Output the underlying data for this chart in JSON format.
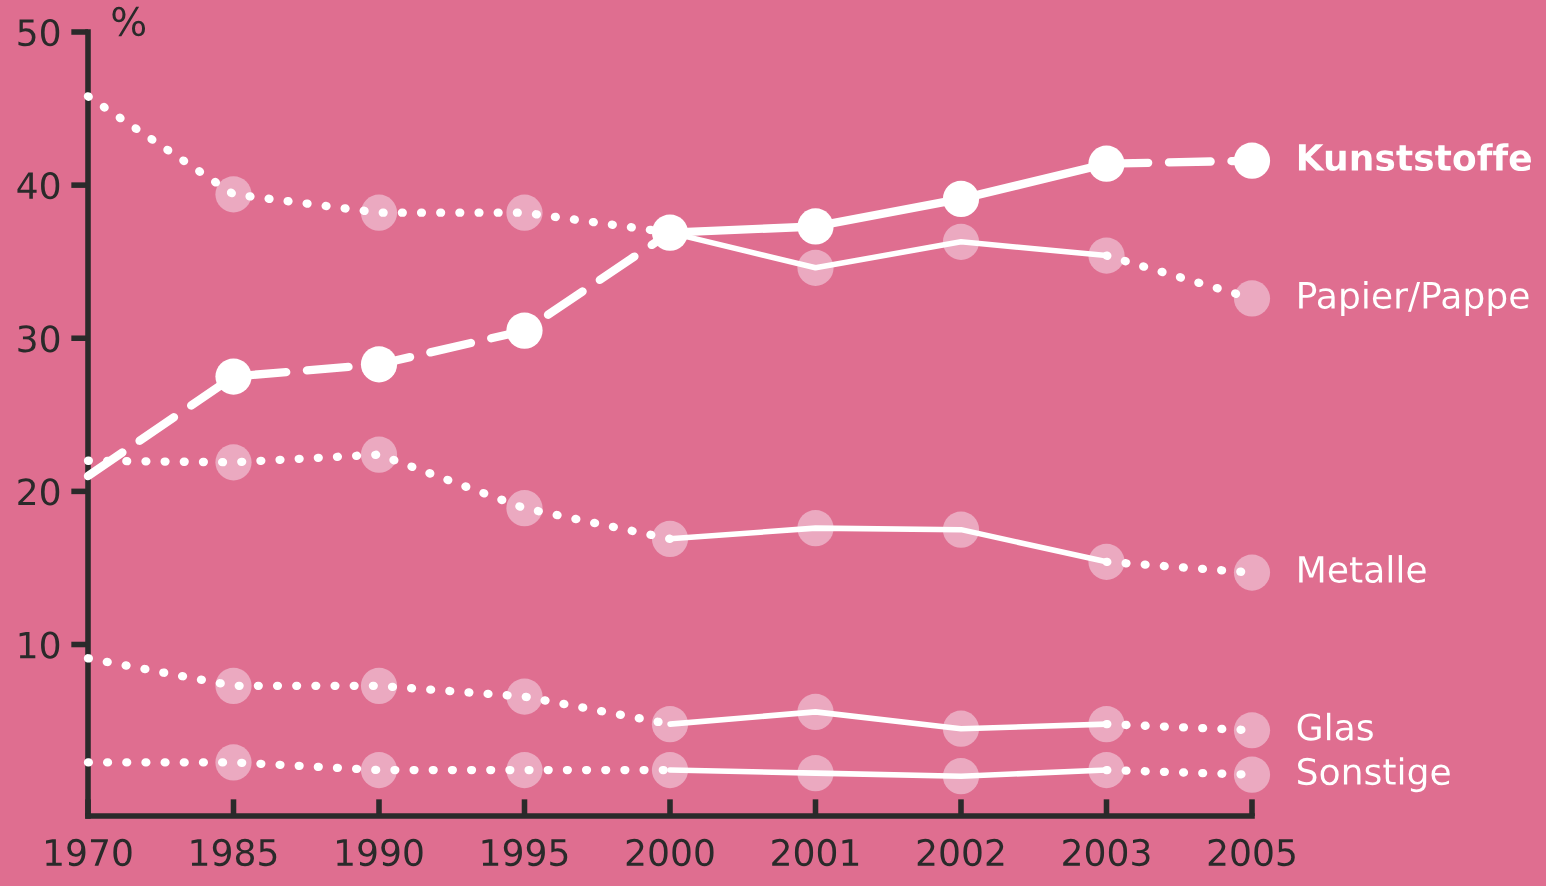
{
  "chart_data": {
    "type": "line",
    "ylabel": "%",
    "categories": [
      "1970",
      "1985",
      "1990",
      "1995",
      "2000",
      "2001",
      "2002",
      "2003",
      "2005"
    ],
    "ylim": [
      -1.2,
      50
    ],
    "yticks": [
      10,
      20,
      30,
      40,
      50
    ],
    "grid": false,
    "legend": false,
    "series": [
      {
        "color": "#ffffff",
        "line_style": "dashed",
        "values": [
          21.0,
          27.5,
          28.3,
          30.5,
          36.9,
          null,
          null,
          null,
          null
        ]
      },
      {
        "color": "#ffffff",
        "line_style": "solid",
        "values": [
          null,
          null,
          null,
          null,
          36.9,
          37.3,
          39.1,
          41.4,
          null
        ]
      },
      {
        "name": "Kunststoffe",
        "color": "#ffffff",
        "line_style": "dashed",
        "values": [
          null,
          null,
          null,
          null,
          null,
          null,
          null,
          41.4,
          41.6
        ]
      },
      {
        "type": "scatter",
        "marker": "circle",
        "color": "#ffffff",
        "values": [
          null,
          27.5,
          28.3,
          30.5,
          36.9,
          37.3,
          39.1,
          41.4,
          41.6
        ]
      },
      {
        "color": "#ffffff",
        "line_style": "dotted",
        "values": [
          45.8,
          39.4,
          38.2,
          38.2,
          36.9,
          null,
          null,
          null,
          null
        ]
      },
      {
        "color": "#ffffff",
        "line_style": "solid",
        "values": [
          null,
          null,
          null,
          null,
          36.9,
          34.6,
          36.3,
          35.4,
          null
        ]
      },
      {
        "name": "Papier/Pappe",
        "color": "#ffffff",
        "line_style": "dotted",
        "values": [
          null,
          null,
          null,
          null,
          null,
          null,
          null,
          35.4,
          32.6
        ]
      },
      {
        "type": "scatter",
        "marker": "circle",
        "color": "#eba9c0",
        "values": [
          null,
          39.4,
          38.2,
          38.2,
          null,
          34.6,
          36.3,
          35.4,
          32.6
        ]
      },
      {
        "color": "#ffffff",
        "line_style": "dotted",
        "values": [
          22.0,
          21.9,
          22.4,
          18.9,
          16.9,
          null,
          null,
          null,
          null
        ]
      },
      {
        "color": "#ffffff",
        "line_style": "solid",
        "values": [
          null,
          null,
          null,
          null,
          16.9,
          17.6,
          17.5,
          15.4,
          null
        ]
      },
      {
        "name": "Metalle",
        "color": "#ffffff",
        "line_style": "dotted",
        "values": [
          null,
          null,
          null,
          null,
          null,
          null,
          null,
          15.4,
          14.7
        ]
      },
      {
        "type": "scatter",
        "marker": "circle",
        "color": "#eba9c0",
        "values": [
          null,
          21.9,
          22.4,
          18.9,
          16.9,
          17.6,
          17.5,
          15.4,
          14.7
        ]
      },
      {
        "color": "#ffffff",
        "line_style": "dotted",
        "values": [
          9.1,
          7.3,
          7.3,
          6.6,
          4.8,
          null,
          null,
          null,
          null
        ]
      },
      {
        "color": "#ffffff",
        "line_style": "solid",
        "values": [
          null,
          null,
          null,
          null,
          4.8,
          5.6,
          4.5,
          4.8,
          null
        ]
      },
      {
        "name": "Glas",
        "color": "#ffffff",
        "line_style": "dotted",
        "values": [
          null,
          null,
          null,
          null,
          null,
          null,
          null,
          4.8,
          4.4
        ]
      },
      {
        "type": "scatter",
        "marker": "circle",
        "color": "#eba9c0",
        "values": [
          null,
          7.3,
          7.3,
          6.6,
          4.8,
          5.6,
          4.5,
          4.8,
          4.4
        ]
      },
      {
        "color": "#ffffff",
        "line_style": "dotted",
        "values": [
          2.3,
          2.3,
          1.8,
          1.8,
          1.8,
          null,
          null,
          null,
          null
        ]
      },
      {
        "color": "#ffffff",
        "line_style": "solid",
        "values": [
          null,
          null,
          null,
          null,
          1.8,
          1.6,
          1.4,
          1.8,
          null
        ]
      },
      {
        "name": "Sonstige",
        "color": "#ffffff",
        "line_style": "dotted",
        "values": [
          null,
          null,
          null,
          null,
          null,
          null,
          null,
          1.8,
          1.5
        ]
      },
      {
        "type": "scatter",
        "marker": "circle",
        "color": "#eba9c0",
        "values": [
          null,
          2.3,
          1.8,
          1.8,
          1.8,
          1.6,
          1.4,
          1.8,
          1.5
        ]
      }
    ]
  }
}
